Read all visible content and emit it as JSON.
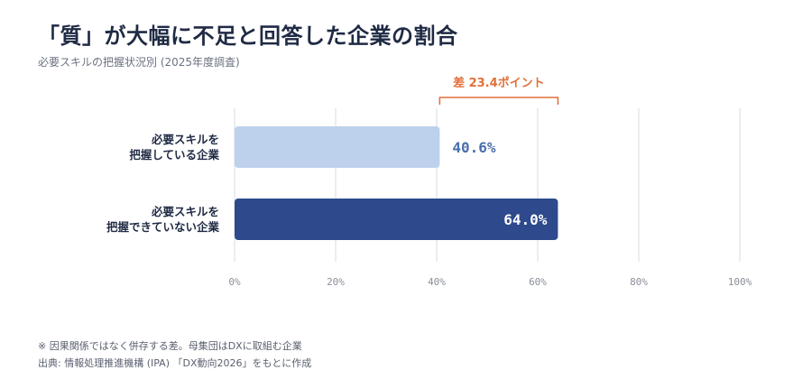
{
  "title": "「質」が大幅に不足と回答した企業の割合",
  "subtitle": "必要スキルの把握状況別 (2025年度調査)",
  "chart_data": {
    "type": "bar",
    "orientation": "horizontal",
    "categories": [
      [
        "必要スキルを",
        "把握している企業"
      ],
      [
        "必要スキルを",
        "把握できていない企業"
      ]
    ],
    "values": [
      40.6,
      64.0
    ],
    "value_labels": [
      "40.6%",
      "64.0%"
    ],
    "bar_colors": [
      "#bdd1ec",
      "#2e4a8c"
    ],
    "xlim": [
      0,
      100
    ],
    "xticks": [
      0,
      20,
      40,
      60,
      80,
      100
    ],
    "xtick_labels": [
      "0%",
      "20%",
      "40%",
      "60%",
      "80%",
      "100%"
    ],
    "grid": true,
    "annotation": {
      "text": "差 23.4ポイント",
      "from": 40.6,
      "to": 64.0,
      "color": "#e0703a"
    }
  },
  "footnotes": {
    "note": "※ 因果関係ではなく併存する差。母集団はDXに取組む企業",
    "source": "出典: 情報処理推進機構 (IPA) 「DX動向2026」をもとに作成"
  },
  "colors": {
    "title": "#1f2a44",
    "grid": "#e5e7eb",
    "tick": "#8a8f99",
    "light_value_text": "#4a6fae"
  }
}
